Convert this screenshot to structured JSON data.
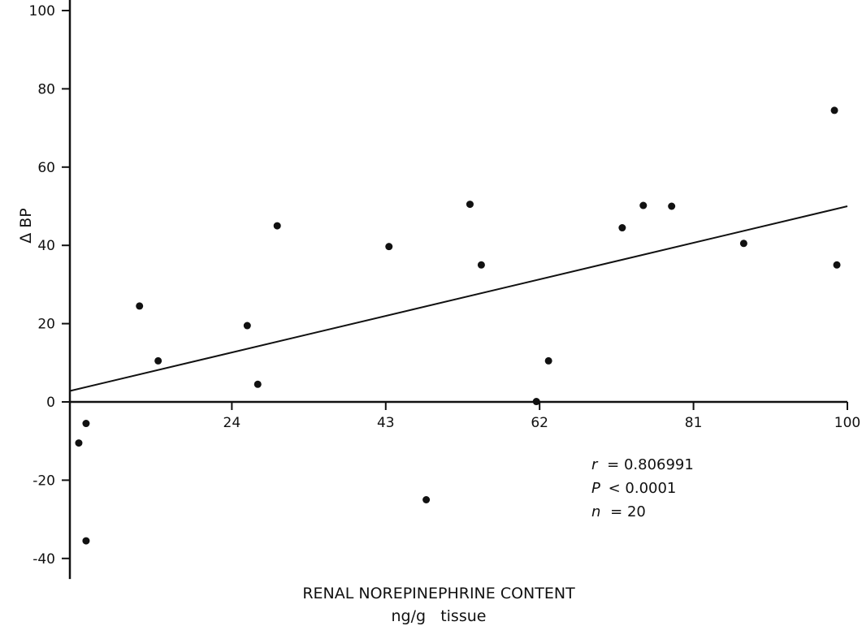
{
  "chart_data": {
    "type": "scatter",
    "xlabel": "RENAL NOREPINEPHRINE CONTENT",
    "xlabel_unit": "ng/g   tissue",
    "ylabel": "Δ BP",
    "x_ticks": [
      24,
      43,
      62,
      81,
      100
    ],
    "y_ticks": [
      -40,
      -20,
      0,
      20,
      40,
      60,
      80,
      100
    ],
    "xlim": [
      4,
      100
    ],
    "ylim": [
      -44,
      104
    ],
    "points": [
      {
        "x": 5.1,
        "y": -10.5
      },
      {
        "x": 6.0,
        "y": -5.5
      },
      {
        "x": 6.0,
        "y": -35.5
      },
      {
        "x": 12.6,
        "y": 24.5
      },
      {
        "x": 14.9,
        "y": 10.5
      },
      {
        "x": 25.9,
        "y": 19.5
      },
      {
        "x": 27.2,
        "y": 4.5
      },
      {
        "x": 29.6,
        "y": 45
      },
      {
        "x": 43.4,
        "y": 39.7
      },
      {
        "x": 48.0,
        "y": -25
      },
      {
        "x": 53.4,
        "y": 50.5
      },
      {
        "x": 54.8,
        "y": 35
      },
      {
        "x": 61.6,
        "y": 0.1
      },
      {
        "x": 63.1,
        "y": 10.5
      },
      {
        "x": 72.2,
        "y": 44.5
      },
      {
        "x": 74.8,
        "y": 50.2
      },
      {
        "x": 78.3,
        "y": 50
      },
      {
        "x": 87.2,
        "y": 40.5
      },
      {
        "x": 98.4,
        "y": 74.5
      },
      {
        "x": 98.7,
        "y": 35
      }
    ],
    "regression_line": {
      "x": [
        4,
        100
      ],
      "y": [
        2.8,
        50
      ]
    },
    "annotations": [
      {
        "label": "r",
        "value": "= 0.806991"
      },
      {
        "label": "P",
        "value": "< 0.0001"
      },
      {
        "label": "n",
        "value": "= 20"
      }
    ],
    "grid": false,
    "legend": "none"
  }
}
